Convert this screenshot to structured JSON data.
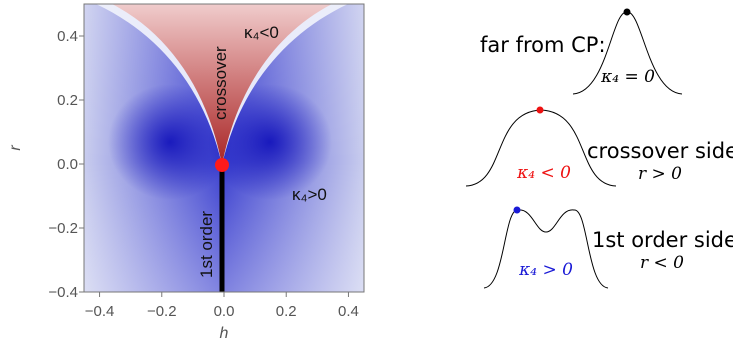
{
  "chart_data": {
    "type": "heatmap",
    "xlabel": "h",
    "ylabel": "r",
    "xlim": [
      -0.45,
      0.45
    ],
    "ylim": [
      -0.4,
      0.5
    ],
    "xticks": [
      "−0.4",
      "−0.2",
      "0.0",
      "0.2",
      "0.4"
    ],
    "yticks": [
      "−0.4",
      "−0.2",
      "0.0",
      "0.2",
      "0.4"
    ],
    "colors": {
      "negative": "#b84a4a",
      "positive": "#1c1fc2",
      "zero": "#ffffff"
    },
    "critical_point": {
      "h": 0.0,
      "r": 0.0,
      "color": "#ff1a1a"
    },
    "first_order_line": {
      "h": 0.0,
      "r_from": 0.0,
      "r_to": -0.4
    },
    "labels": {
      "crossover": "crossover",
      "first_order": "1st order",
      "k_neg": "κ₄<0",
      "k_pos": "κ₄>0"
    }
  },
  "schematics": {
    "far": {
      "title": "far from CP:",
      "label": "κ₄ = 0",
      "dot_color": "#000000"
    },
    "crossover": {
      "title": "crossover side",
      "condition": "r > 0",
      "label": "κ₄ < 0",
      "dot_color": "#ee1111",
      "label_color": "#ee1111"
    },
    "first_order": {
      "title": "1st order side",
      "condition": "r < 0",
      "label": "κ₄ > 0",
      "dot_color": "#1a1ad6",
      "label_color": "#1a1ad6"
    }
  }
}
